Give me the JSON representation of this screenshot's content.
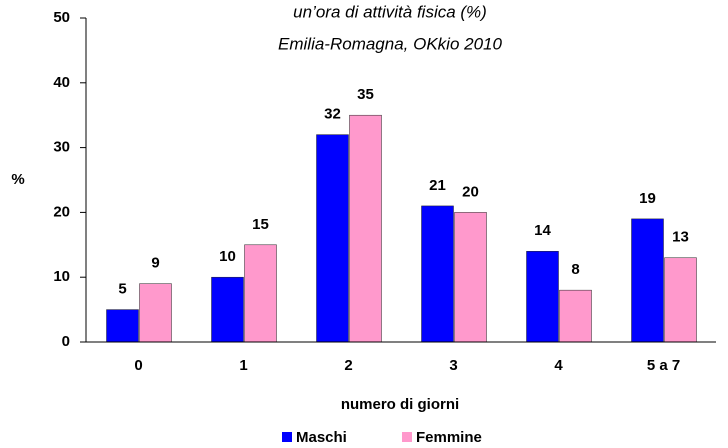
{
  "chart_data": {
    "type": "bar",
    "title": "un’ora di attività fisica (%)",
    "subtitle": "Emilia-Romagna, OKkio 2010",
    "x_label": "numero di giorni",
    "y_label": "%",
    "categories": [
      "0",
      "1",
      "2",
      "3",
      "4",
      "5 a 7"
    ],
    "series": [
      {
        "name": "Maschi",
        "color": "#0000ff",
        "values": [
          5,
          10,
          32,
          21,
          14,
          19
        ]
      },
      {
        "name": "Femmine",
        "color": "#ff99cc",
        "values": [
          9,
          15,
          35,
          20,
          8,
          13
        ]
      }
    ],
    "ylim": [
      0,
      50
    ],
    "yticks": [
      0,
      10,
      20,
      30,
      40,
      50
    ],
    "grid": false,
    "legend": "bottom"
  }
}
